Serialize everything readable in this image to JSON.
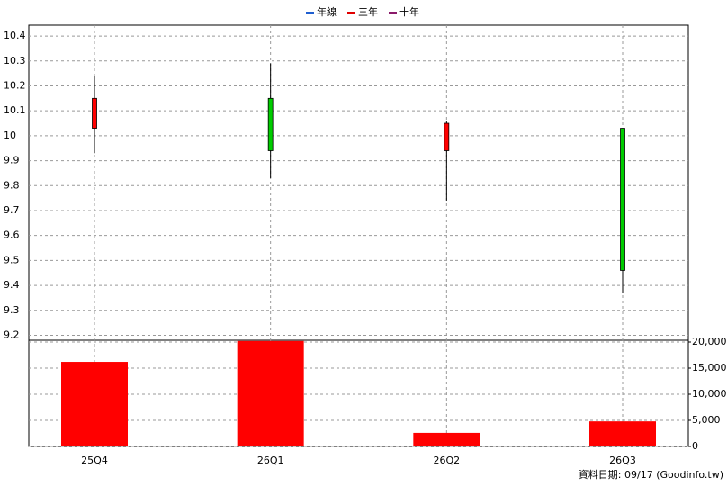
{
  "chart_data": {
    "type": "candlestick",
    "legend": [
      {
        "name": "年線",
        "color": "#1f5fd0"
      },
      {
        "name": "三年",
        "color": "#e00000"
      },
      {
        "name": "十年",
        "color": "#8a1a6a"
      }
    ],
    "categories": [
      "25Q4",
      "26Q1",
      "26Q2",
      "26Q3"
    ],
    "open": [
      10.03,
      10.15,
      9.94,
      10.03
    ],
    "high": [
      10.24,
      10.29,
      10.06,
      10.03
    ],
    "low": [
      9.93,
      9.83,
      9.74,
      9.37
    ],
    "close": [
      10.15,
      9.94,
      10.05,
      9.46
    ],
    "up_color": "#ff0000",
    "down_color": "#00cc00",
    "ylim": [
      9.18,
      10.44
    ],
    "yticks": [
      9.2,
      9.3,
      9.4,
      9.5,
      9.6,
      9.7,
      9.8,
      9.9,
      10,
      10.1,
      10.2,
      10.3,
      10.4
    ],
    "volume": {
      "color": "#ff0000",
      "values": [
        16200,
        20200,
        2600,
        4800
      ]
    },
    "y2lim": [
      0,
      20000
    ],
    "y2ticks": [
      0,
      {
        "value": 5000,
        "label": "5,000"
      },
      {
        "value": 10000,
        "label": "10,000"
      },
      {
        "value": 15000,
        "label": "15,000"
      },
      {
        "value": 20000,
        "label": "20,000"
      }
    ],
    "grid": true,
    "footer": "資料日期: 09/17 (Goodinfo.tw)"
  }
}
